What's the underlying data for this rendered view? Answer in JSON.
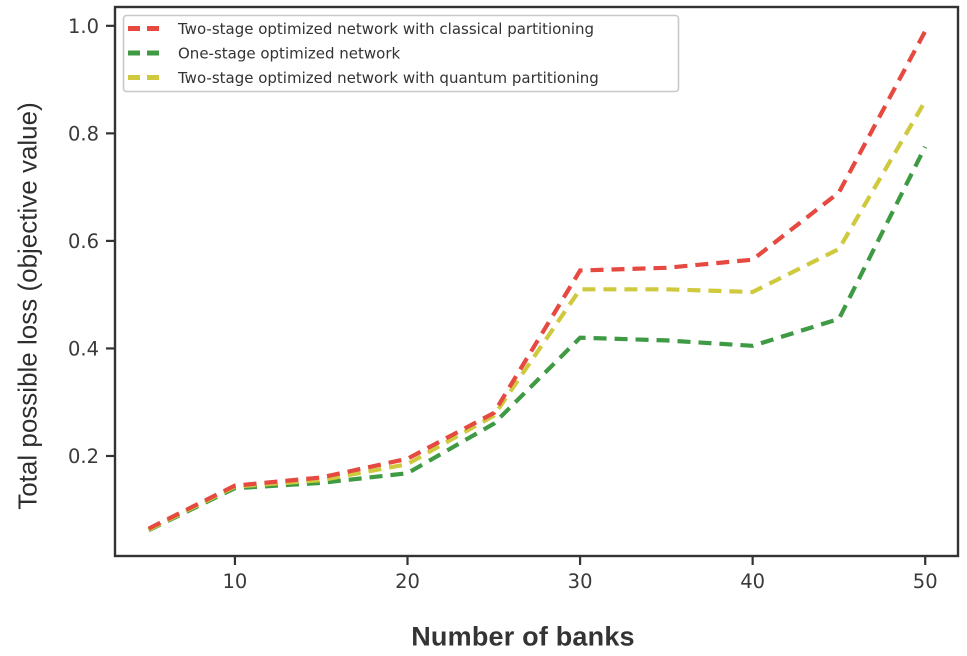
{
  "chart_data": {
    "type": "line",
    "title": "",
    "xlabel": "Number of banks",
    "ylabel": "Total possible loss (objective value)",
    "x": [
      5,
      10,
      15,
      20,
      25,
      30,
      35,
      40,
      45,
      50
    ],
    "series": [
      {
        "name": "Two-stage optimized network with classical partitioning",
        "color": "#e5493f",
        "linestyle": "dashed",
        "values": [
          0.065,
          0.145,
          0.16,
          0.195,
          0.28,
          0.545,
          0.55,
          0.565,
          0.69,
          0.99
        ]
      },
      {
        "name": "One-stage optimized network",
        "color": "#3f9a44",
        "linestyle": "dashed",
        "values": [
          0.062,
          0.14,
          0.15,
          0.168,
          0.26,
          0.42,
          0.415,
          0.405,
          0.455,
          0.775
        ]
      },
      {
        "name": "Two-stage optimized network with quantum partitioning",
        "color": "#cfc93e",
        "linestyle": "dashed",
        "values": [
          0.063,
          0.143,
          0.155,
          0.185,
          0.275,
          0.51,
          0.51,
          0.505,
          0.585,
          0.86
        ]
      }
    ],
    "draw_order": [
      1,
      2,
      0
    ],
    "xtick_labels": [
      "10",
      "20",
      "30",
      "40",
      "50"
    ],
    "xtick_values": [
      10,
      20,
      30,
      40,
      50
    ],
    "ytick_labels": [
      "0.2",
      "0.4",
      "0.6",
      "0.8",
      "1.0"
    ],
    "ytick_values": [
      0.2,
      0.4,
      0.6,
      0.8,
      1.0
    ],
    "xlim": [
      3.05,
      51.9
    ],
    "ylim": [
      0.014,
      1.035
    ],
    "grid": false,
    "legend_position": "upper-left"
  },
  "colors": {
    "axis": "#333333",
    "tick_label": "#3a3a3a",
    "legend_border": "#c9c9c9",
    "legend_background": "#ffffff",
    "legend_text": "#333333"
  }
}
